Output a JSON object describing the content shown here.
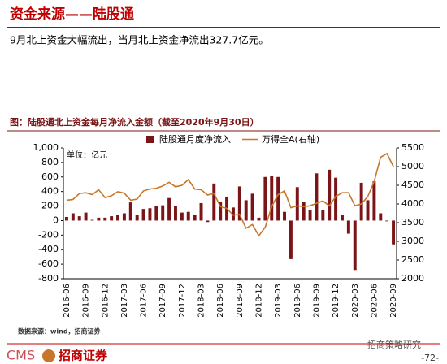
{
  "header": {
    "title": "资金来源——陆股通",
    "subtitle": "9月北上资金大幅流出，当月北上资金净流出327.7亿元。"
  },
  "chart_data": {
    "type": "bar_line",
    "title": "图：陆股通北上资金每月净流入金额（截至2020年9月30日）",
    "y_label": "单位：亿元",
    "source": "数据来源：wind，招商证券",
    "categories": [
      "2016-06",
      null,
      null,
      "2016-09",
      null,
      null,
      "2016-12",
      null,
      null,
      "2017-03",
      null,
      null,
      "2017-06",
      null,
      null,
      "2017-09",
      null,
      null,
      "2017-12",
      null,
      null,
      "2018-03",
      null,
      null,
      "2018-06",
      null,
      null,
      "2018-09",
      null,
      null,
      "2018-12",
      null,
      null,
      "2019-03",
      null,
      null,
      "2019-06",
      null,
      null,
      "2019-09",
      null,
      null,
      "2019-12",
      null,
      null,
      "2020-03",
      null,
      null,
      "2020-06",
      null,
      null,
      "2020-09"
    ],
    "series": [
      {
        "name": "陆股通月度净流入",
        "type": "bar",
        "color": "#7b1416",
        "values": [
          50,
          100,
          60,
          110,
          10,
          40,
          40,
          60,
          80,
          100,
          250,
          80,
          160,
          170,
          200,
          210,
          310,
          200,
          110,
          120,
          80,
          240,
          -20,
          510,
          260,
          330,
          180,
          470,
          280,
          370,
          40,
          600,
          610,
          600,
          120,
          -530,
          460,
          260,
          140,
          650,
          150,
          700,
          590,
          80,
          -180,
          -680,
          520,
          280,
          540,
          100,
          -10,
          -327.7
        ]
      },
      {
        "name": "万得全A(右轴)",
        "type": "line",
        "axis": "y2",
        "color": "#c8772a",
        "values": [
          4100,
          4120,
          4280,
          4300,
          4250,
          4380,
          4170,
          4220,
          4330,
          4290,
          4100,
          4130,
          4350,
          4400,
          4420,
          4480,
          4580,
          4460,
          4500,
          4650,
          4400,
          4380,
          4240,
          4280,
          3930,
          3880,
          3700,
          3720,
          3350,
          3450,
          3150,
          3380,
          3930,
          4250,
          4350,
          3900,
          3950,
          3930,
          3950,
          4020,
          4080,
          3950,
          4200,
          4300,
          4300,
          3950,
          4000,
          4200,
          4600,
          5250,
          5350,
          5000
        ]
      }
    ],
    "ylim": [
      -800,
      1000
    ],
    "yticks": [
      -800,
      -600,
      -400,
      -200,
      0,
      200,
      400,
      600,
      800,
      {
        "value": 1000,
        "label": "1,000"
      }
    ],
    "y2lim": [
      2000,
      5500
    ],
    "y2ticks": [
      2000,
      2500,
      3000,
      3500,
      4000,
      4500,
      5000,
      5500
    ]
  },
  "footer": {
    "logo": "CMS",
    "company": "招商证券",
    "brand": "招商策略研究",
    "page": "-72-"
  }
}
